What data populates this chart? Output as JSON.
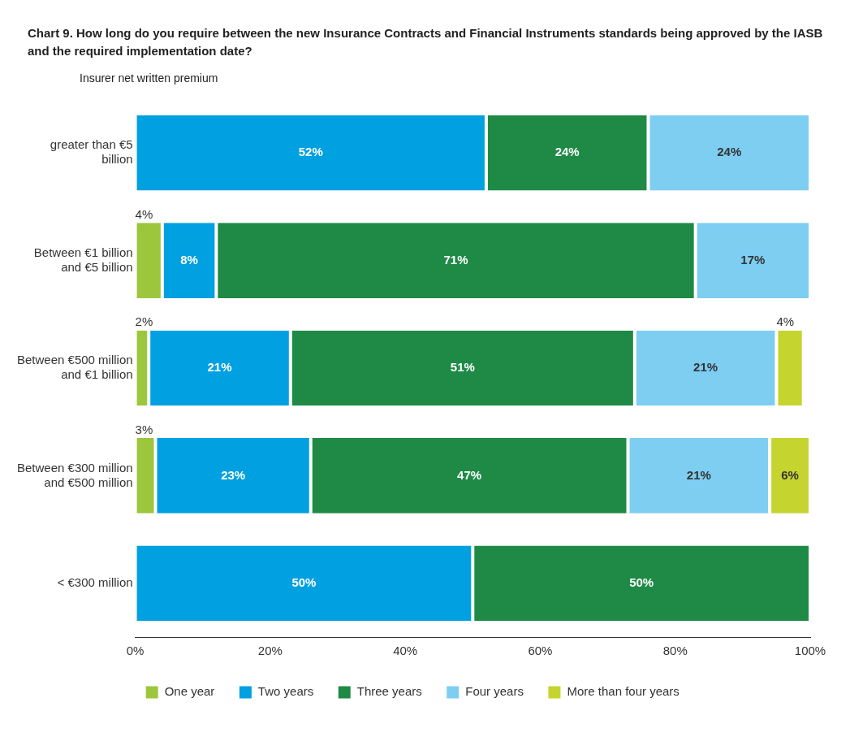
{
  "chart_data": {
    "type": "bar",
    "orientation": "horizontal",
    "stacked": true,
    "title": "Chart 9. How long do you require between the new Insurance Contracts and Financial Instruments standards being approved by the IASB and the required implementation date?",
    "ylabel": "Insurer net written premium",
    "categories": [
      "greater than €5 billion",
      "Between €1 billion and €5 billion",
      "Between €500 million and €1 billion",
      "Between €300 million and €500 million",
      "< €300 million"
    ],
    "series": [
      {
        "name": "One year",
        "color": "#9cc63c",
        "values": [
          null,
          4,
          2,
          3,
          null
        ],
        "value_labels": [
          null,
          "4%",
          "2%",
          "3%",
          null
        ]
      },
      {
        "name": "Two years",
        "color": "#00a0e1",
        "values": [
          52,
          8,
          21,
          23,
          50
        ],
        "value_labels": [
          "52%",
          "8%",
          "21%",
          "23%",
          "50%"
        ]
      },
      {
        "name": "Three years",
        "color": "#1e8a45",
        "values": [
          24,
          71,
          51,
          47,
          50
        ],
        "value_labels": [
          "24%",
          "71%",
          "51%",
          "47%",
          "50%"
        ]
      },
      {
        "name": "Four years",
        "color": "#7ecef2",
        "values": [
          24,
          17,
          21,
          21,
          null
        ],
        "value_labels": [
          "24%",
          "17%",
          "21%",
          "21%",
          null
        ]
      },
      {
        "name": "More than four years",
        "color": "#c5d42e",
        "values": [
          null,
          null,
          4,
          6,
          null
        ],
        "value_labels": [
          null,
          null,
          "4%",
          "6%",
          null
        ]
      }
    ],
    "xlim": [
      0,
      100
    ],
    "xticks": [
      {
        "value": 0,
        "label": "0%"
      },
      {
        "value": 20,
        "label": "20%"
      },
      {
        "value": 40,
        "label": "40%"
      },
      {
        "value": 60,
        "label": "60%"
      },
      {
        "value": 80,
        "label": "80%"
      },
      {
        "value": 100,
        "label": "100%"
      }
    ],
    "grid": false,
    "legend": "bottom"
  }
}
